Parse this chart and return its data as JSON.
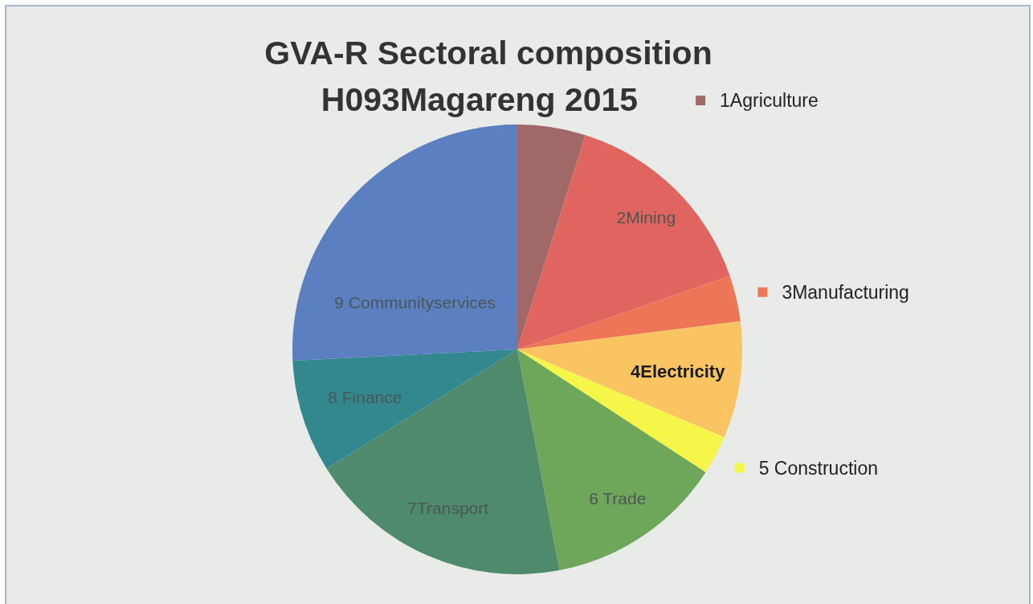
{
  "chart_data": {
    "type": "pie",
    "title": "GVA-R Sectoral composition",
    "subtitle": "H093Magareng 2015",
    "categories": [
      "1Agriculture",
      "2Mining",
      "3Manufacturing",
      "4Electricity",
      "5 Construction",
      "6 Trade",
      "7Transport",
      "8 Finance",
      "9 Communityservices"
    ],
    "values": [
      4.9,
      14.8,
      3.3,
      8.4,
      2.8,
      12.8,
      19.1,
      8.1,
      25.8
    ],
    "colors": [
      "#a06866",
      "#e0645f",
      "#ee7658",
      "#fbc462",
      "#f6f54a",
      "#6ea75a",
      "#4f8a6d",
      "#33888f",
      "#5b7fc0"
    ],
    "legend": "right"
  }
}
